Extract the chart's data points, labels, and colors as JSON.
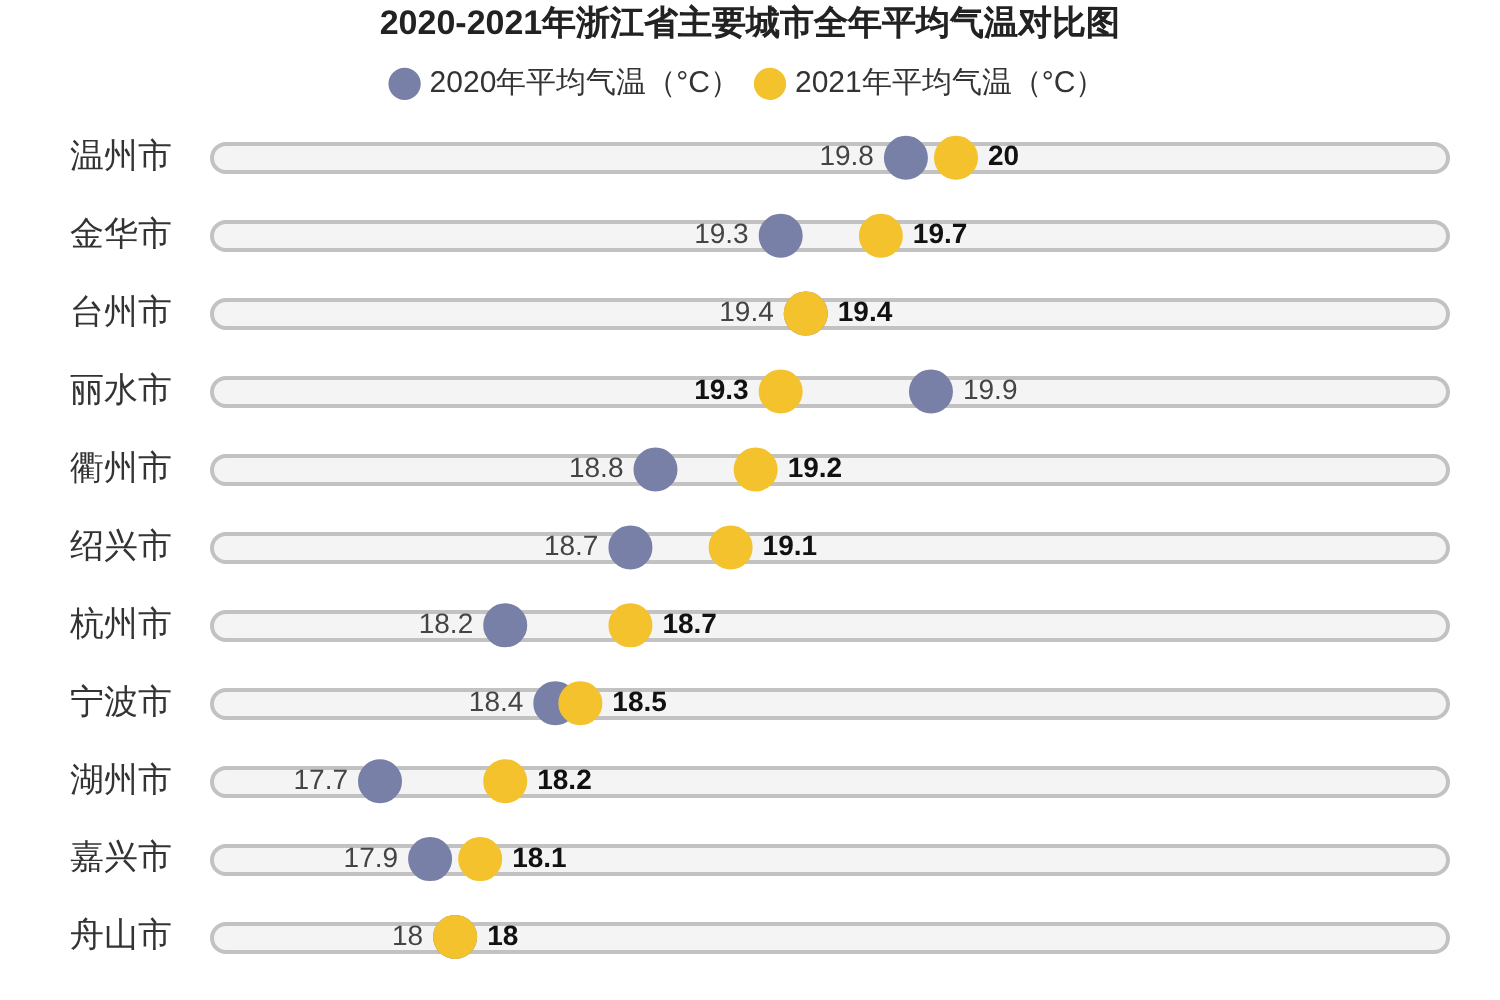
{
  "chart_data": {
    "type": "scatter",
    "title": "2020-2021年浙江省主要城市全年平均气温对比图",
    "orientation": "horizontal",
    "categories": [
      "温州市",
      "金华市",
      "台州市",
      "丽水市",
      "衢州市",
      "绍兴市",
      "杭州市",
      "宁波市",
      "湖州市",
      "嘉兴市",
      "舟山市"
    ],
    "series": [
      {
        "name": "2020年平均气温（°C）",
        "color": "#7880a8",
        "values": [
          19.8,
          19.3,
          19.4,
          19.9,
          18.8,
          18.7,
          18.2,
          18.4,
          17.7,
          17.9,
          18
        ]
      },
      {
        "name": "2021年平均气温（°C）",
        "color": "#f3c22c",
        "values": [
          20,
          19.7,
          19.4,
          19.3,
          19.2,
          19.1,
          18.7,
          18.5,
          18.2,
          18.1,
          18
        ]
      }
    ],
    "marker": "circle",
    "data_labels": true,
    "legend": "top",
    "tick_labels": "y"
  }
}
